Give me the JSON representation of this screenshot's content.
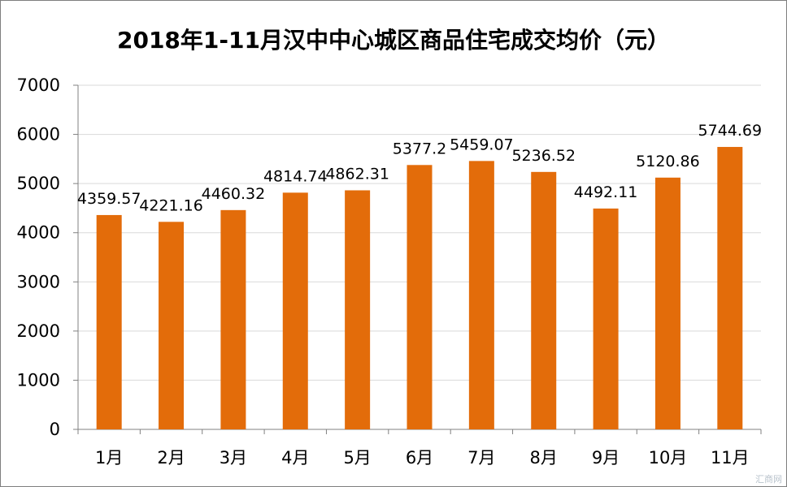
{
  "chart_data": {
    "type": "bar",
    "title": "2018年1-11月汉中中心城区商品住宅成交均价（元）",
    "categories": [
      "1月",
      "2月",
      "3月",
      "4月",
      "5月",
      "6月",
      "7月",
      "8月",
      "9月",
      "10月",
      "11月"
    ],
    "values": [
      4359.57,
      4221.16,
      4460.32,
      4814.74,
      4862.31,
      5377.2,
      5459.07,
      5236.52,
      4492.11,
      5120.86,
      5744.69
    ],
    "data_labels": [
      "4359.57",
      "4221.16",
      "4460.32",
      "4814.74",
      "4862.31",
      "5377.2",
      "5459.07",
      "5236.52",
      "4492.11",
      "5120.86",
      "5744.69"
    ],
    "ylim": [
      0,
      7000
    ],
    "yticks": [
      "0",
      "1000",
      "2000",
      "3000",
      "4000",
      "5000",
      "6000",
      "7000"
    ],
    "grid": true,
    "bar_color": "#E36C0A",
    "grid_color": "#D9D9D9"
  },
  "watermark": "汇商网"
}
